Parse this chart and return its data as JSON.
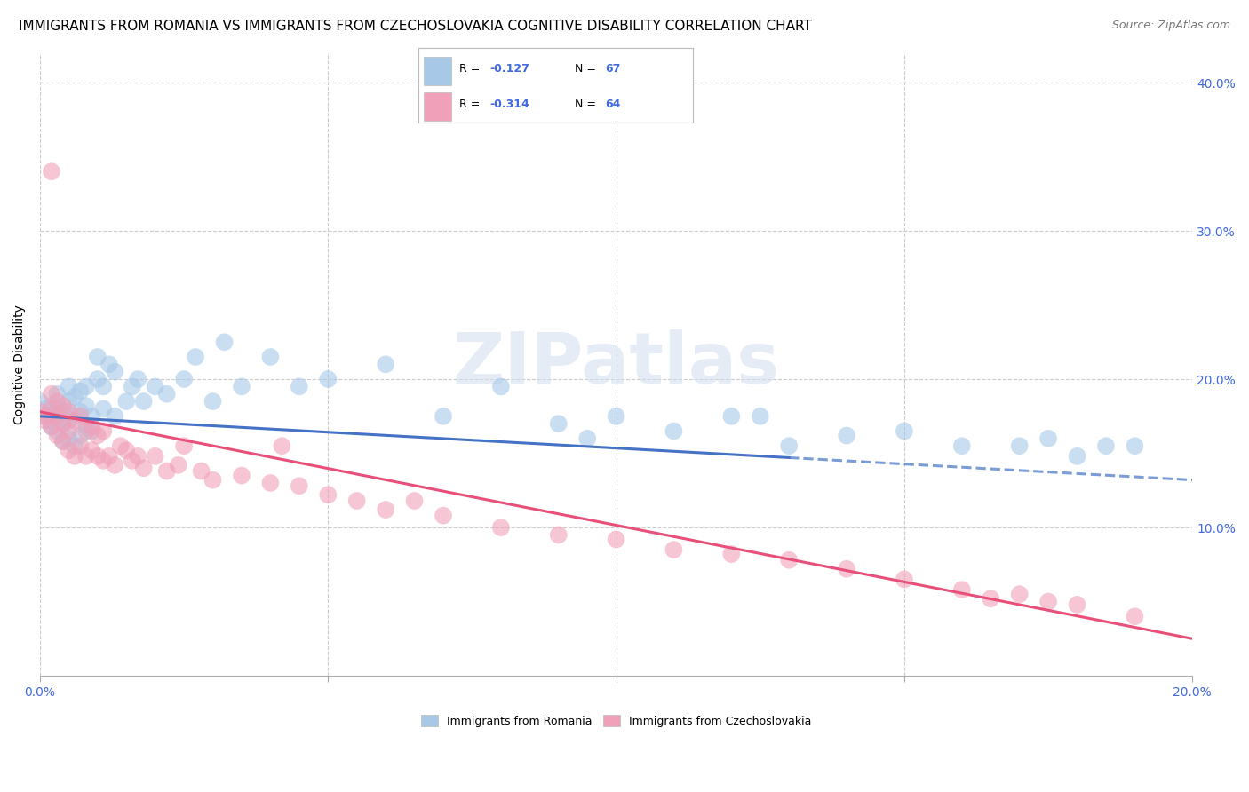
{
  "title": "IMMIGRANTS FROM ROMANIA VS IMMIGRANTS FROM CZECHOSLOVAKIA COGNITIVE DISABILITY CORRELATION CHART",
  "source": "Source: ZipAtlas.com",
  "ylabel": "Cognitive Disability",
  "series": [
    {
      "name": "Immigrants from Romania",
      "R": -0.127,
      "N": 67,
      "color": "#a8c8e8",
      "trend_color": "#4472c4",
      "trend_start_x": 0.0,
      "trend_end_x": 0.2,
      "trend_solid_end_x": 0.13,
      "trend_start_y": 0.175,
      "trend_end_y": 0.132,
      "x": [
        0.0,
        0.001,
        0.001,
        0.002,
        0.002,
        0.002,
        0.003,
        0.003,
        0.003,
        0.003,
        0.004,
        0.004,
        0.004,
        0.005,
        0.005,
        0.005,
        0.005,
        0.006,
        0.006,
        0.006,
        0.007,
        0.007,
        0.007,
        0.008,
        0.008,
        0.008,
        0.009,
        0.009,
        0.01,
        0.01,
        0.011,
        0.011,
        0.012,
        0.013,
        0.013,
        0.015,
        0.016,
        0.017,
        0.018,
        0.02,
        0.022,
        0.025,
        0.027,
        0.03,
        0.032,
        0.035,
        0.04,
        0.045,
        0.05,
        0.06,
        0.07,
        0.08,
        0.09,
        0.095,
        0.1,
        0.11,
        0.12,
        0.13,
        0.14,
        0.15,
        0.16,
        0.17,
        0.175,
        0.18,
        0.185,
        0.19,
        0.125
      ],
      "y": [
        0.185,
        0.18,
        0.175,
        0.172,
        0.168,
        0.182,
        0.165,
        0.175,
        0.18,
        0.19,
        0.158,
        0.17,
        0.178,
        0.16,
        0.172,
        0.185,
        0.195,
        0.155,
        0.175,
        0.188,
        0.162,
        0.178,
        0.192,
        0.168,
        0.182,
        0.195,
        0.165,
        0.175,
        0.2,
        0.215,
        0.18,
        0.195,
        0.21,
        0.175,
        0.205,
        0.185,
        0.195,
        0.2,
        0.185,
        0.195,
        0.19,
        0.2,
        0.215,
        0.185,
        0.225,
        0.195,
        0.215,
        0.195,
        0.2,
        0.21,
        0.175,
        0.195,
        0.17,
        0.16,
        0.175,
        0.165,
        0.175,
        0.155,
        0.162,
        0.165,
        0.155,
        0.155,
        0.16,
        0.148,
        0.155,
        0.155,
        0.175
      ]
    },
    {
      "name": "Immigrants from Czechoslovakia",
      "R": -0.314,
      "N": 64,
      "color": "#f0a0b8",
      "trend_color": "#e8507a",
      "trend_start_x": 0.0,
      "trend_end_x": 0.2,
      "trend_start_y": 0.178,
      "trend_end_y": 0.025,
      "x": [
        0.0,
        0.001,
        0.001,
        0.002,
        0.002,
        0.002,
        0.003,
        0.003,
        0.003,
        0.004,
        0.004,
        0.004,
        0.005,
        0.005,
        0.005,
        0.006,
        0.006,
        0.007,
        0.007,
        0.008,
        0.008,
        0.009,
        0.009,
        0.01,
        0.01,
        0.011,
        0.011,
        0.012,
        0.013,
        0.014,
        0.015,
        0.016,
        0.017,
        0.018,
        0.02,
        0.022,
        0.024,
        0.025,
        0.028,
        0.03,
        0.035,
        0.04,
        0.042,
        0.045,
        0.05,
        0.055,
        0.06,
        0.065,
        0.07,
        0.08,
        0.09,
        0.1,
        0.11,
        0.12,
        0.13,
        0.14,
        0.15,
        0.16,
        0.165,
        0.17,
        0.175,
        0.18,
        0.19,
        0.002
      ],
      "y": [
        0.178,
        0.175,
        0.172,
        0.168,
        0.18,
        0.19,
        0.162,
        0.175,
        0.185,
        0.158,
        0.17,
        0.182,
        0.152,
        0.165,
        0.178,
        0.148,
        0.172,
        0.155,
        0.175,
        0.148,
        0.165,
        0.152,
        0.168,
        0.148,
        0.162,
        0.145,
        0.165,
        0.148,
        0.142,
        0.155,
        0.152,
        0.145,
        0.148,
        0.14,
        0.148,
        0.138,
        0.142,
        0.155,
        0.138,
        0.132,
        0.135,
        0.13,
        0.155,
        0.128,
        0.122,
        0.118,
        0.112,
        0.118,
        0.108,
        0.1,
        0.095,
        0.092,
        0.085,
        0.082,
        0.078,
        0.072,
        0.065,
        0.058,
        0.052,
        0.055,
        0.05,
        0.048,
        0.04,
        0.34
      ]
    }
  ],
  "xlim": [
    0.0,
    0.2
  ],
  "ylim": [
    0.0,
    0.42
  ],
  "xticks": [
    0.0,
    0.05,
    0.1,
    0.15,
    0.2
  ],
  "yticks": [
    0.1,
    0.2,
    0.3,
    0.4
  ],
  "ytick_labels_right": [
    "10.0%",
    "20.0%",
    "30.0%",
    "40.0%"
  ],
  "grid_color": "#cccccc",
  "background_color": "#ffffff",
  "title_fontsize": 11,
  "source_fontsize": 9,
  "watermark_text": "ZIPatlas",
  "legend_color": "#4169e1"
}
